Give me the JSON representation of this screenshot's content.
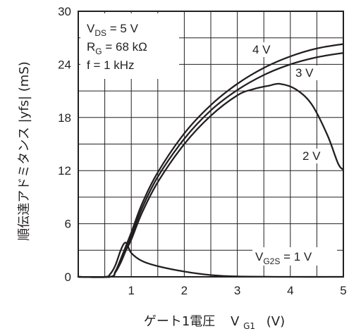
{
  "chart_data": {
    "type": "line",
    "title": "",
    "xlabel": {
      "main": "ゲート1電圧",
      "symbol": "V",
      "symbol_sub": "G1",
      "unit": "(V)"
    },
    "ylabel": "順伝達アドミタンス |yfs| (mS)",
    "xlim": [
      0,
      5
    ],
    "ylim": [
      0,
      30
    ],
    "x_ticks": [
      0,
      1,
      2,
      3,
      4,
      5
    ],
    "x_tick_labels": [
      "1",
      "2",
      "3",
      "4",
      "5"
    ],
    "y_ticks": [
      0,
      6,
      12,
      18,
      24,
      30
    ],
    "y_tick_labels": [
      "0",
      "6",
      "12",
      "18",
      "24",
      "30"
    ],
    "grid": true,
    "conditions": [
      {
        "main": "V",
        "sub": "DS",
        "rest": " = 5 V"
      },
      {
        "main": "R",
        "sub": "G",
        "rest": " = 68 kΩ"
      },
      {
        "main": "f = 1 kHz",
        "sub": "",
        "rest": ""
      }
    ],
    "series": [
      {
        "name": "4 V",
        "x": [
          0.6,
          0.7,
          0.8,
          0.9,
          1.0,
          1.2,
          1.5,
          2.0,
          2.5,
          3.0,
          3.5,
          4.0,
          4.5,
          5.0
        ],
        "y": [
          0,
          0.6,
          2.0,
          3.5,
          5.0,
          8.2,
          11.8,
          16.2,
          19.4,
          21.8,
          23.6,
          24.9,
          25.8,
          26.3
        ]
      },
      {
        "name": "3 V",
        "x": [
          0.6,
          0.7,
          0.8,
          0.9,
          1.0,
          1.2,
          1.5,
          2.0,
          2.5,
          3.0,
          3.5,
          4.0,
          4.5,
          5.0
        ],
        "y": [
          0,
          0.6,
          1.8,
          3.2,
          4.6,
          7.7,
          11.3,
          15.6,
          18.8,
          21.1,
          22.8,
          24.0,
          24.8,
          25.3
        ]
      },
      {
        "name": "2 V",
        "x": [
          0.6,
          0.7,
          0.8,
          0.9,
          1.0,
          1.2,
          1.5,
          2.0,
          2.5,
          3.0,
          3.3,
          3.6,
          3.8,
          4.1,
          4.4,
          4.7,
          4.9,
          5.0
        ],
        "y": [
          0,
          0.5,
          1.6,
          3.0,
          4.2,
          7.2,
          10.7,
          15.0,
          18.2,
          20.5,
          21.2,
          21.6,
          21.8,
          21.2,
          19.5,
          16.0,
          12.8,
          12.1
        ]
      },
      {
        "name": "1 V",
        "x": [
          0.5,
          0.6,
          0.7,
          0.8,
          0.87,
          0.92,
          1.0,
          1.2,
          1.5,
          2.0,
          2.5,
          3.0,
          4.0,
          5.0
        ],
        "y": [
          0,
          0.3,
          1.3,
          3.0,
          3.8,
          3.7,
          2.7,
          1.8,
          1.2,
          0.6,
          0.2,
          0.05,
          0,
          0
        ]
      }
    ],
    "series_labels": [
      {
        "text": "4 V"
      },
      {
        "text": "3 V"
      },
      {
        "text": "2 V"
      },
      {
        "main": "V",
        "sub": "G2S",
        "rest": " = 1 V"
      }
    ]
  }
}
